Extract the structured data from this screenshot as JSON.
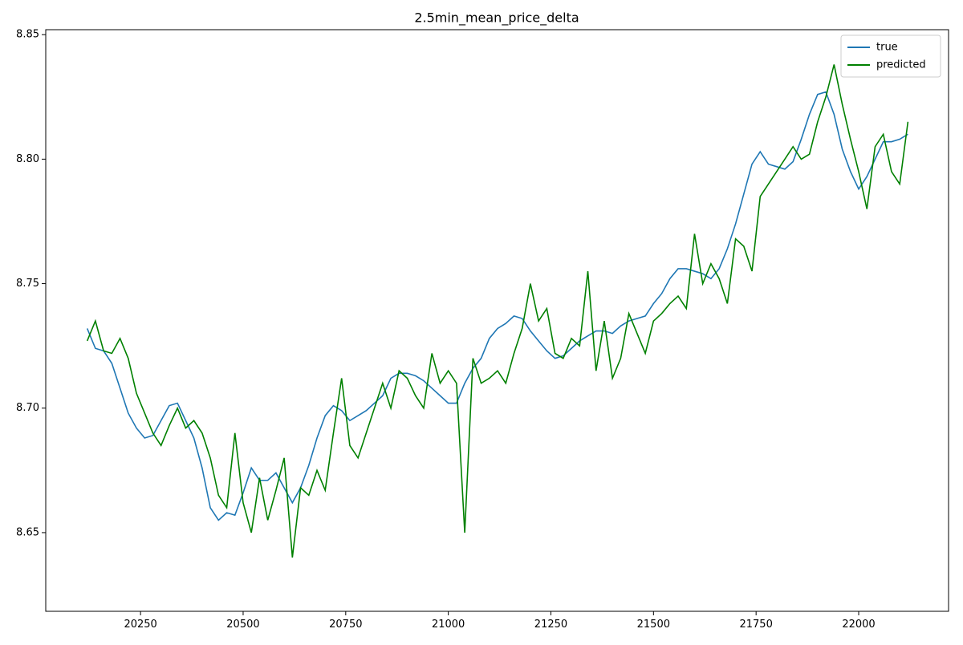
{
  "chart_data": {
    "type": "line",
    "title": "2.5min_mean_price_delta",
    "x": [
      20120,
      20140,
      20160,
      20180,
      20200,
      20220,
      20240,
      20260,
      20280,
      20300,
      20320,
      20340,
      20360,
      20380,
      20400,
      20420,
      20440,
      20460,
      20480,
      20500,
      20520,
      20540,
      20560,
      20580,
      20600,
      20620,
      20640,
      20660,
      20680,
      20700,
      20720,
      20740,
      20760,
      20780,
      20800,
      20820,
      20840,
      20860,
      20880,
      20900,
      20920,
      20940,
      20960,
      20980,
      21000,
      21020,
      21040,
      21060,
      21080,
      21100,
      21120,
      21140,
      21160,
      21180,
      21200,
      21220,
      21240,
      21260,
      21280,
      21300,
      21320,
      21340,
      21360,
      21380,
      21400,
      21420,
      21440,
      21460,
      21480,
      21500,
      21520,
      21540,
      21560,
      21580,
      21600,
      21620,
      21640,
      21660,
      21680,
      21700,
      21720,
      21740,
      21760,
      21780,
      21800,
      21820,
      21840,
      21860,
      21880,
      21900,
      21920,
      21940,
      21960,
      21980,
      22000,
      22020,
      22040,
      22060,
      22080,
      22100,
      22120
    ],
    "series": [
      {
        "name": "true",
        "color": "#1f77b4",
        "values": [
          8.732,
          8.724,
          8.723,
          8.718,
          8.708,
          8.698,
          8.692,
          8.688,
          8.689,
          8.695,
          8.701,
          8.702,
          8.695,
          8.688,
          8.676,
          8.66,
          8.655,
          8.658,
          8.657,
          8.666,
          8.676,
          8.671,
          8.671,
          8.674,
          8.668,
          8.662,
          8.668,
          8.677,
          8.688,
          8.697,
          8.701,
          8.699,
          8.695,
          8.697,
          8.699,
          8.702,
          8.705,
          8.712,
          8.714,
          8.714,
          8.713,
          8.711,
          8.708,
          8.705,
          8.702,
          8.702,
          8.71,
          8.716,
          8.72,
          8.728,
          8.732,
          8.734,
          8.737,
          8.736,
          8.731,
          8.727,
          8.723,
          8.72,
          8.721,
          8.724,
          8.727,
          8.729,
          8.731,
          8.731,
          8.73,
          8.733,
          8.735,
          8.736,
          8.737,
          8.742,
          8.746,
          8.752,
          8.756,
          8.756,
          8.755,
          8.754,
          8.752,
          8.756,
          8.764,
          8.774,
          8.786,
          8.798,
          8.803,
          8.798,
          8.797,
          8.796,
          8.799,
          8.808,
          8.818,
          8.826,
          8.827,
          8.818,
          8.804,
          8.795,
          8.788,
          8.793,
          8.8,
          8.807,
          8.807,
          8.808,
          8.81
        ]
      },
      {
        "name": "predicted",
        "color": "#008000",
        "values": [
          8.727,
          8.735,
          8.723,
          8.722,
          8.728,
          8.72,
          8.706,
          8.698,
          8.69,
          8.685,
          8.693,
          8.7,
          8.692,
          8.695,
          8.69,
          8.68,
          8.665,
          8.66,
          8.69,
          8.662,
          8.65,
          8.672,
          8.655,
          8.667,
          8.68,
          8.64,
          8.668,
          8.665,
          8.675,
          8.667,
          8.69,
          8.712,
          8.685,
          8.68,
          8.69,
          8.7,
          8.71,
          8.7,
          8.715,
          8.712,
          8.705,
          8.7,
          8.722,
          8.71,
          8.715,
          8.71,
          8.65,
          8.72,
          8.71,
          8.712,
          8.715,
          8.71,
          8.722,
          8.732,
          8.75,
          8.735,
          8.74,
          8.722,
          8.72,
          8.728,
          8.725,
          8.755,
          8.715,
          8.735,
          8.712,
          8.72,
          8.738,
          8.73,
          8.722,
          8.735,
          8.738,
          8.742,
          8.745,
          8.74,
          8.77,
          8.75,
          8.758,
          8.752,
          8.742,
          8.768,
          8.765,
          8.755,
          8.785,
          8.79,
          8.795,
          8.8,
          8.805,
          8.8,
          8.802,
          8.815,
          8.825,
          8.838,
          8.822,
          8.808,
          8.795,
          8.78,
          8.805,
          8.81,
          8.795,
          8.79,
          8.815
        ]
      }
    ],
    "xlim": [
      20019,
      22219
    ],
    "ylim": [
      8.6184,
      8.852
    ],
    "xticks": [
      20250,
      20500,
      20750,
      21000,
      21250,
      21500,
      21750,
      22000
    ],
    "yticks": [
      8.65,
      {
        "value": 8.7,
        "label": "8.70"
      },
      8.75,
      {
        "value": 8.8,
        "label": "8.80"
      },
      8.85
    ],
    "legend": "upper right"
  }
}
